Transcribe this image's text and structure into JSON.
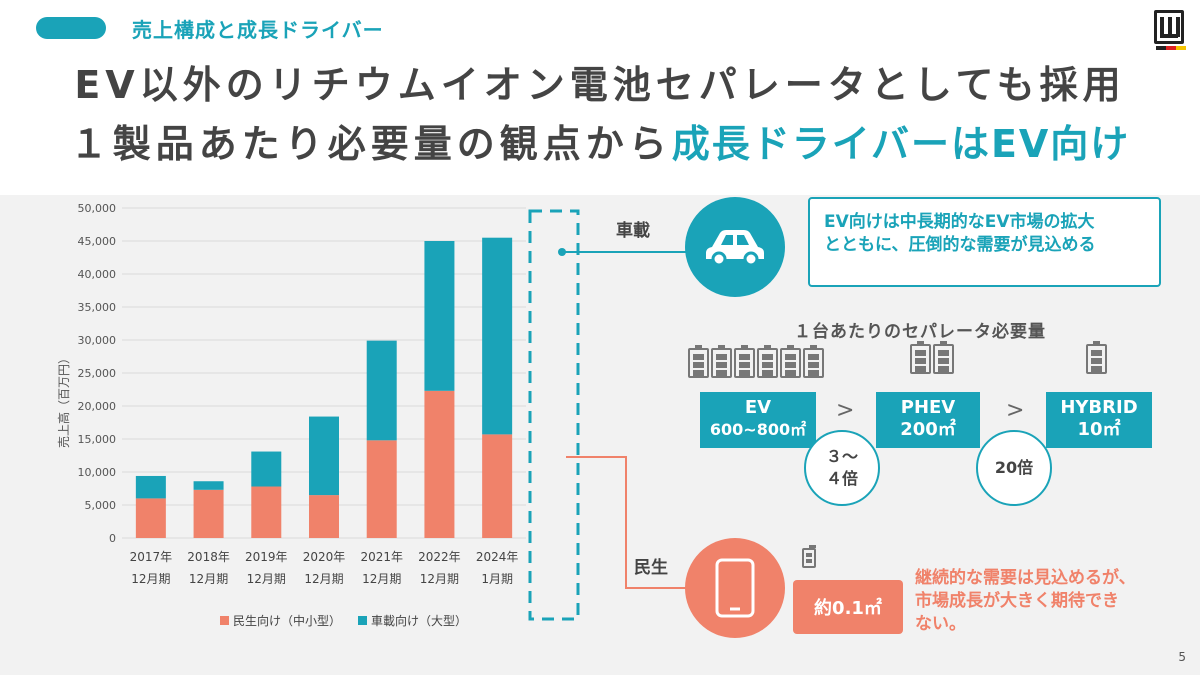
{
  "section_title": "売上構成と成長ドライバー",
  "headline": {
    "line1": "EV以外のリチウムイオン電池セパレータとしても採用",
    "line2_prefix": "１製品あたり必要量の観点から",
    "line2_highlight": "成長ドライバーはEV向け"
  },
  "colors": {
    "teal": "#1aa3b8",
    "salmon": "#f0826a",
    "panel": "#f2f2f2",
    "text": "#444444"
  },
  "chart_data": {
    "type": "bar",
    "stacked": true,
    "ylabel": "売上高（百万円）",
    "ylim": [
      0,
      50000
    ],
    "yticks": [
      "50,000",
      "45,000",
      "40,000",
      "35,000",
      "30,000",
      "25,000",
      "20,000",
      "15,000",
      "10,000",
      "5,000",
      "0"
    ],
    "categories": [
      [
        "2017年",
        "12月期"
      ],
      [
        "2018年",
        "12月期"
      ],
      [
        "2019年",
        "12月期"
      ],
      [
        "2020年",
        "12月期"
      ],
      [
        "2021年",
        "12月期"
      ],
      [
        "2022年",
        "12月期"
      ],
      [
        "2024年",
        "1月期"
      ]
    ],
    "series": [
      {
        "name": "民生向け（中小型）",
        "color": "#f0826a",
        "values": [
          6000,
          7300,
          7800,
          6500,
          14800,
          22300,
          15700
        ]
      },
      {
        "name": "車載向け（大型）",
        "color": "#1aa3b8",
        "values": [
          3400,
          1300,
          5300,
          11900,
          15100,
          22700,
          29800
        ]
      }
    ],
    "legend_position": "bottom"
  },
  "automotive": {
    "label": "車載",
    "icon": "car-icon",
    "note_line1": "EV向けは中長期的なEV市場の拡大",
    "note_line2": "とともに、圧倒的な需要が見込める"
  },
  "requirement": {
    "title": "１台あたりのセパレータ必要量",
    "ev_label": "EV",
    "ev_value": "600~800㎡",
    "phev_label": "PHEV",
    "phev_value": "200㎡",
    "hybrid_label": "HYBRID",
    "hybrid_value": "10㎡",
    "gt1": ">",
    "gt2": ">",
    "ratio1": "３～４倍",
    "ratio2": "20倍"
  },
  "consumer": {
    "label": "民生",
    "icon": "smartphone-icon",
    "value": "約0.1㎡",
    "note_line1": "継続的な需要は見込めるが、",
    "note_line2": "市場成長が大きく期待でき",
    "note_line3": "ない。"
  },
  "page_number": "5"
}
